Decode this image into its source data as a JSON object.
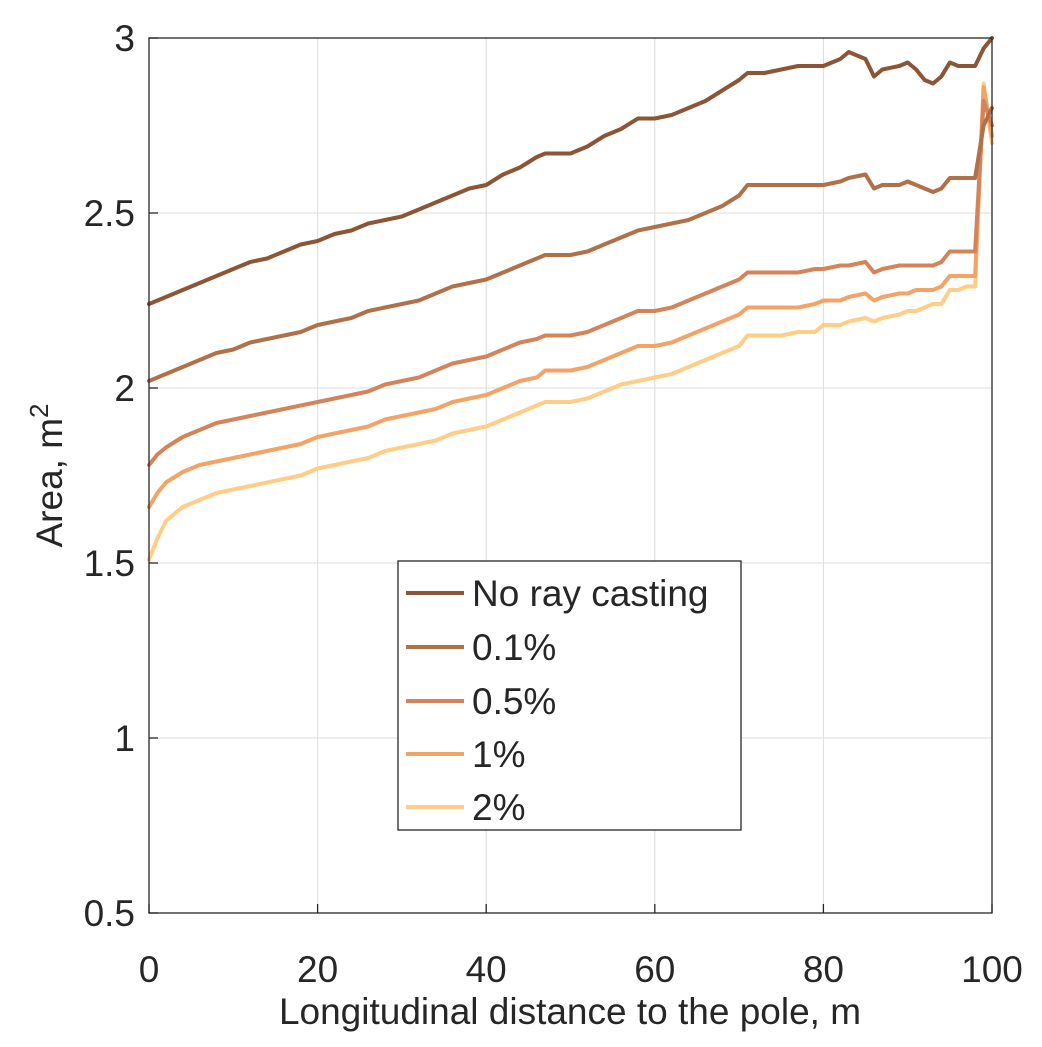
{
  "chart_data": {
    "type": "line",
    "xlabel": "Longitudinal distance to the pole, m",
    "ylabel_main": "Area, m",
    "ylabel_sup": "2",
    "xlim": [
      0,
      100
    ],
    "ylim": [
      0.5,
      3
    ],
    "xticks": [
      0,
      20,
      40,
      60,
      80,
      100
    ],
    "xtick_labels": [
      "0",
      "20",
      "40",
      "60",
      "80",
      "100"
    ],
    "yticks": [
      0.5,
      1,
      1.5,
      2,
      2.5,
      3
    ],
    "ytick_labels": [
      "0.5",
      "1",
      "1.5",
      "2",
      "2.5",
      "3"
    ],
    "grid": true,
    "legend_position": "lower-center",
    "series": [
      {
        "name": "No ray casting",
        "color": "#8c5535",
        "x": [
          0,
          2,
          4,
          6,
          8,
          10,
          12,
          14,
          16,
          18,
          20,
          22,
          24,
          26,
          28,
          30,
          32,
          34,
          36,
          38,
          40,
          42,
          44,
          46,
          47,
          49,
          50,
          52,
          54,
          56,
          58,
          60,
          62,
          64,
          66,
          68,
          70,
          71,
          73,
          75,
          77,
          79,
          80,
          82,
          83,
          85,
          86,
          87,
          89,
          90,
          91,
          92,
          93,
          94,
          95,
          96,
          97,
          98,
          99,
          100
        ],
        "y": [
          2.24,
          2.26,
          2.28,
          2.3,
          2.32,
          2.34,
          2.36,
          2.37,
          2.39,
          2.41,
          2.42,
          2.44,
          2.45,
          2.47,
          2.48,
          2.49,
          2.51,
          2.53,
          2.55,
          2.57,
          2.58,
          2.61,
          2.63,
          2.66,
          2.67,
          2.67,
          2.67,
          2.69,
          2.72,
          2.74,
          2.77,
          2.77,
          2.78,
          2.8,
          2.82,
          2.85,
          2.88,
          2.9,
          2.9,
          2.91,
          2.92,
          2.92,
          2.92,
          2.94,
          2.96,
          2.94,
          2.89,
          2.91,
          2.92,
          2.93,
          2.91,
          2.88,
          2.87,
          2.89,
          2.93,
          2.92,
          2.92,
          2.92,
          2.97,
          3.0
        ]
      },
      {
        "name": "0.1%",
        "color": "#b07048",
        "x": [
          0,
          2,
          4,
          6,
          8,
          10,
          12,
          14,
          16,
          18,
          20,
          22,
          24,
          26,
          28,
          30,
          32,
          34,
          36,
          38,
          40,
          42,
          44,
          46,
          47,
          49,
          50,
          52,
          54,
          56,
          58,
          60,
          62,
          64,
          66,
          68,
          70,
          71,
          73,
          75,
          77,
          79,
          80,
          82,
          83,
          85,
          86,
          87,
          89,
          90,
          91,
          92,
          93,
          94,
          95,
          96,
          97,
          98,
          99,
          100
        ],
        "y": [
          2.02,
          2.04,
          2.06,
          2.08,
          2.1,
          2.11,
          2.13,
          2.14,
          2.15,
          2.16,
          2.18,
          2.19,
          2.2,
          2.22,
          2.23,
          2.24,
          2.25,
          2.27,
          2.29,
          2.3,
          2.31,
          2.33,
          2.35,
          2.37,
          2.38,
          2.38,
          2.38,
          2.39,
          2.41,
          2.43,
          2.45,
          2.46,
          2.47,
          2.48,
          2.5,
          2.52,
          2.55,
          2.58,
          2.58,
          2.58,
          2.58,
          2.58,
          2.58,
          2.59,
          2.6,
          2.61,
          2.57,
          2.58,
          2.58,
          2.59,
          2.58,
          2.57,
          2.56,
          2.57,
          2.6,
          2.6,
          2.6,
          2.6,
          2.75,
          2.8
        ]
      },
      {
        "name": "0.5%",
        "color": "#d4845a",
        "x": [
          0,
          1,
          2,
          4,
          6,
          8,
          10,
          12,
          14,
          16,
          18,
          20,
          22,
          24,
          26,
          28,
          30,
          32,
          34,
          36,
          38,
          40,
          42,
          44,
          46,
          47,
          49,
          50,
          52,
          54,
          56,
          58,
          60,
          62,
          64,
          66,
          68,
          70,
          71,
          73,
          75,
          77,
          79,
          80,
          82,
          83,
          85,
          86,
          87,
          89,
          90,
          91,
          92,
          93,
          94,
          95,
          96,
          97,
          98,
          99,
          100
        ],
        "y": [
          1.78,
          1.81,
          1.83,
          1.86,
          1.88,
          1.9,
          1.91,
          1.92,
          1.93,
          1.94,
          1.95,
          1.96,
          1.97,
          1.98,
          1.99,
          2.01,
          2.02,
          2.03,
          2.05,
          2.07,
          2.08,
          2.09,
          2.11,
          2.13,
          2.14,
          2.15,
          2.15,
          2.15,
          2.16,
          2.18,
          2.2,
          2.22,
          2.22,
          2.23,
          2.25,
          2.27,
          2.29,
          2.31,
          2.33,
          2.33,
          2.33,
          2.33,
          2.34,
          2.34,
          2.35,
          2.35,
          2.36,
          2.33,
          2.34,
          2.35,
          2.35,
          2.35,
          2.35,
          2.35,
          2.36,
          2.39,
          2.39,
          2.39,
          2.39,
          2.82,
          2.75
        ]
      },
      {
        "name": "1%",
        "color": "#f2a365",
        "x": [
          0,
          1,
          2,
          4,
          6,
          8,
          10,
          12,
          14,
          16,
          18,
          20,
          22,
          24,
          26,
          28,
          30,
          32,
          34,
          36,
          38,
          40,
          42,
          44,
          46,
          47,
          49,
          50,
          52,
          54,
          56,
          58,
          60,
          62,
          64,
          66,
          68,
          70,
          71,
          73,
          75,
          77,
          79,
          80,
          82,
          83,
          85,
          86,
          87,
          89,
          90,
          91,
          92,
          93,
          94,
          95,
          96,
          97,
          98,
          99,
          100
        ],
        "y": [
          1.66,
          1.7,
          1.73,
          1.76,
          1.78,
          1.79,
          1.8,
          1.81,
          1.82,
          1.83,
          1.84,
          1.86,
          1.87,
          1.88,
          1.89,
          1.91,
          1.92,
          1.93,
          1.94,
          1.96,
          1.97,
          1.98,
          2.0,
          2.02,
          2.03,
          2.05,
          2.05,
          2.05,
          2.06,
          2.08,
          2.1,
          2.12,
          2.12,
          2.13,
          2.15,
          2.17,
          2.19,
          2.21,
          2.23,
          2.23,
          2.23,
          2.23,
          2.24,
          2.25,
          2.25,
          2.26,
          2.27,
          2.25,
          2.26,
          2.27,
          2.27,
          2.28,
          2.28,
          2.28,
          2.29,
          2.32,
          2.32,
          2.32,
          2.32,
          2.86,
          2.72
        ]
      },
      {
        "name": "2%",
        "color": "#ffcd86",
        "x": [
          0,
          1,
          2,
          4,
          6,
          8,
          10,
          12,
          14,
          16,
          18,
          20,
          22,
          24,
          26,
          28,
          30,
          32,
          34,
          36,
          38,
          40,
          42,
          44,
          46,
          47,
          49,
          50,
          52,
          54,
          56,
          58,
          60,
          62,
          64,
          66,
          68,
          70,
          71,
          73,
          75,
          77,
          79,
          80,
          82,
          83,
          85,
          86,
          87,
          89,
          90,
          91,
          92,
          93,
          94,
          95,
          96,
          97,
          98,
          99,
          100
        ],
        "y": [
          1.51,
          1.57,
          1.62,
          1.66,
          1.68,
          1.7,
          1.71,
          1.72,
          1.73,
          1.74,
          1.75,
          1.77,
          1.78,
          1.79,
          1.8,
          1.82,
          1.83,
          1.84,
          1.85,
          1.87,
          1.88,
          1.89,
          1.91,
          1.93,
          1.95,
          1.96,
          1.96,
          1.96,
          1.97,
          1.99,
          2.01,
          2.02,
          2.03,
          2.04,
          2.06,
          2.08,
          2.1,
          2.12,
          2.15,
          2.15,
          2.15,
          2.16,
          2.16,
          2.18,
          2.18,
          2.19,
          2.2,
          2.19,
          2.2,
          2.21,
          2.22,
          2.22,
          2.23,
          2.24,
          2.24,
          2.28,
          2.28,
          2.29,
          2.29,
          2.87,
          2.7
        ]
      }
    ]
  }
}
